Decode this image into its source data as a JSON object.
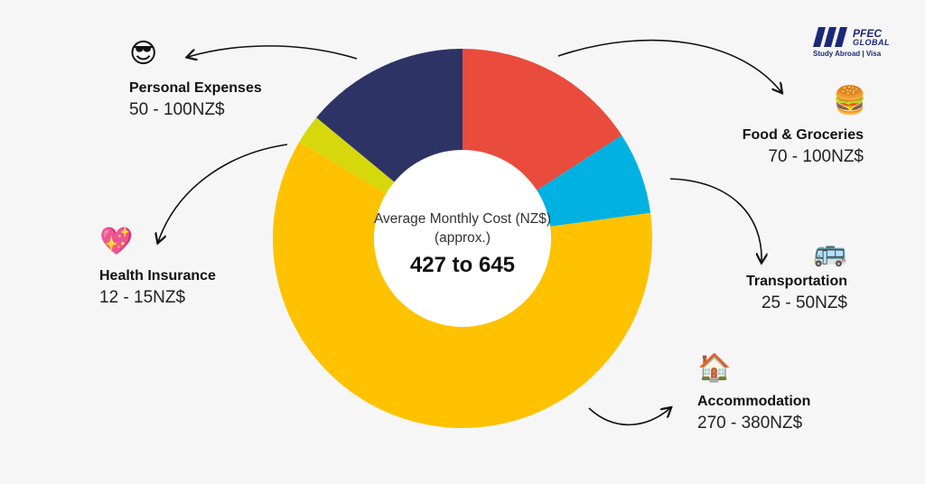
{
  "chart_data": {
    "type": "pie",
    "center": {
      "subtitle": "Average Monthly Cost (NZ$) (approx.)",
      "value": "427 to 645"
    },
    "slices": [
      {
        "name": "Food & Groceries",
        "range": "70 - 100NZ$",
        "value": 85,
        "color": "#e94b3c",
        "icon": "hamburger-icon"
      },
      {
        "name": "Transportation",
        "range": "25 - 50NZ$",
        "value": 37.5,
        "color": "#00b1e1",
        "icon": "bus-icon"
      },
      {
        "name": "Accommodation",
        "range": "270 - 380NZ$",
        "value": 325,
        "color": "#fec200",
        "icon": "house-icon"
      },
      {
        "name": "Health Insurance",
        "range": "12 - 15NZ$",
        "value": 13.5,
        "color": "#d6d80c",
        "icon": "sparkling-heart-icon"
      },
      {
        "name": "Personal Expenses",
        "range": "50 - 100NZ$",
        "value": 75,
        "color": "#2e3366",
        "icon": "sunglasses-face-icon"
      }
    ]
  },
  "logo": {
    "line1": "PFEC",
    "line2": "GLOBAL",
    "tagline": "Study Abroad | Visa",
    "color": "#1b2a78"
  }
}
